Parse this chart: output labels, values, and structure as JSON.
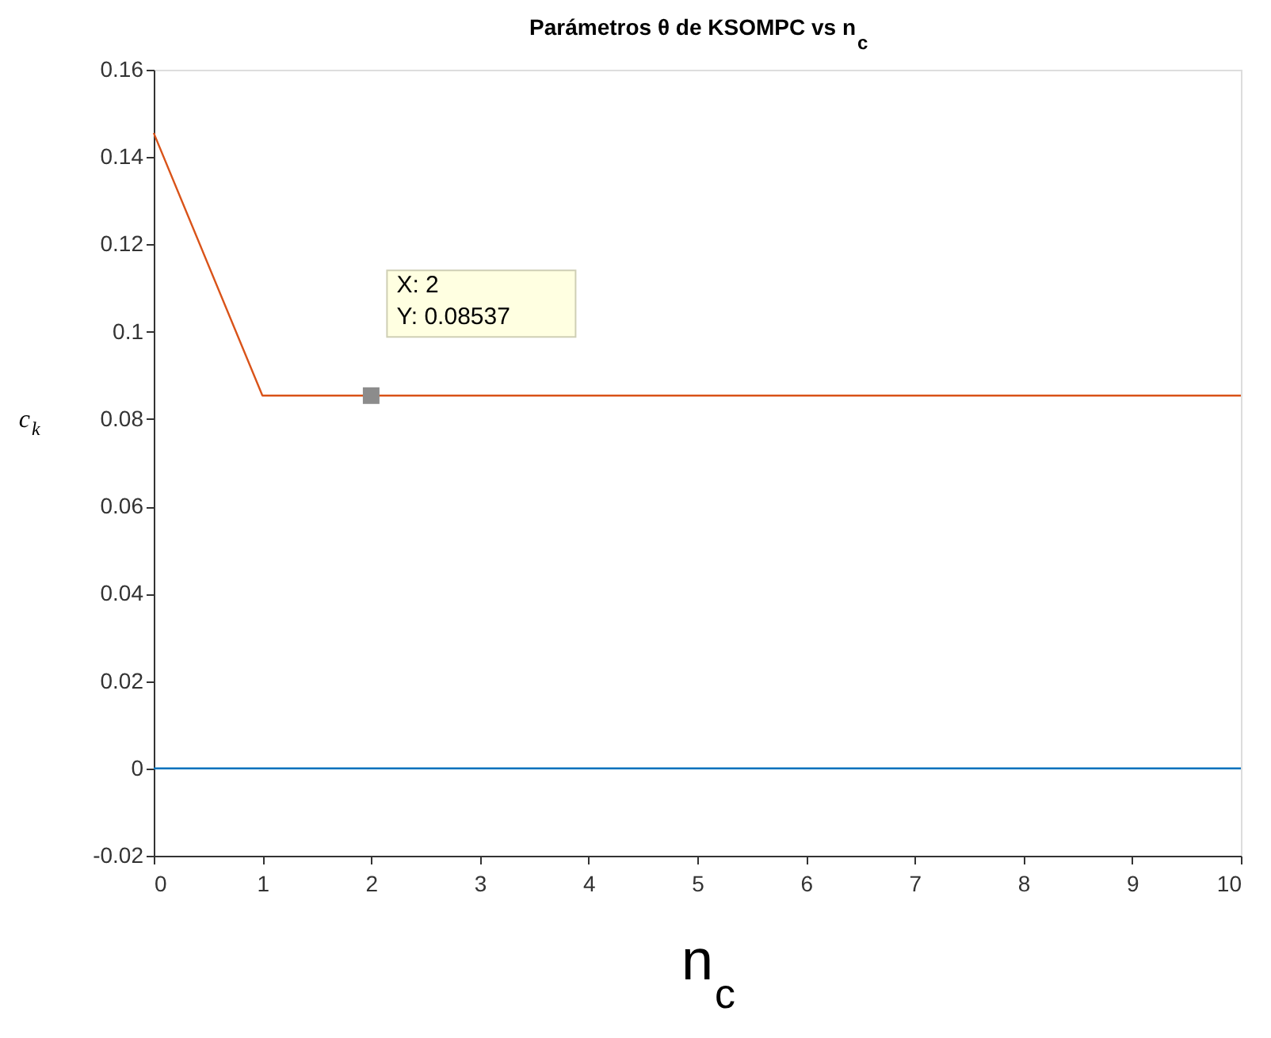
{
  "chart_data": {
    "type": "line",
    "title": "Parámetros θ de KSOMPC vs n$_{c}$",
    "xlabel": "n$_{c}$",
    "ylabel": "c$_{k}$",
    "x": [
      0,
      1,
      2,
      3,
      4,
      5,
      6,
      7,
      8,
      9,
      10
    ],
    "series": [
      {
        "color": "#d95319",
        "values": [
          0.1455,
          0.08537,
          0.08537,
          0.08537,
          0.08537,
          0.08537,
          0.08537,
          0.08537,
          0.08537,
          0.08537,
          0.08537
        ]
      },
      {
        "color": "#0072bd",
        "values": [
          0,
          0,
          0,
          0,
          0,
          0,
          0,
          0,
          0,
          0,
          0
        ]
      }
    ],
    "annotations": [
      {
        "text": "X: 2\nY: 0.08537",
        "x": 2,
        "y": 0.08537
      }
    ],
    "xlim": [
      0,
      10
    ],
    "xticks": [
      0,
      1,
      2,
      3,
      4,
      5,
      6,
      7,
      8,
      9,
      10
    ],
    "ylim": [
      -0.02,
      0.16
    ],
    "yticks": [
      -0.02,
      0,
      0.02,
      0.04,
      0.06,
      0.08,
      0.1,
      0.12,
      0.14,
      0.16
    ],
    "grid": false,
    "marker": "none",
    "line_style": "solid"
  }
}
